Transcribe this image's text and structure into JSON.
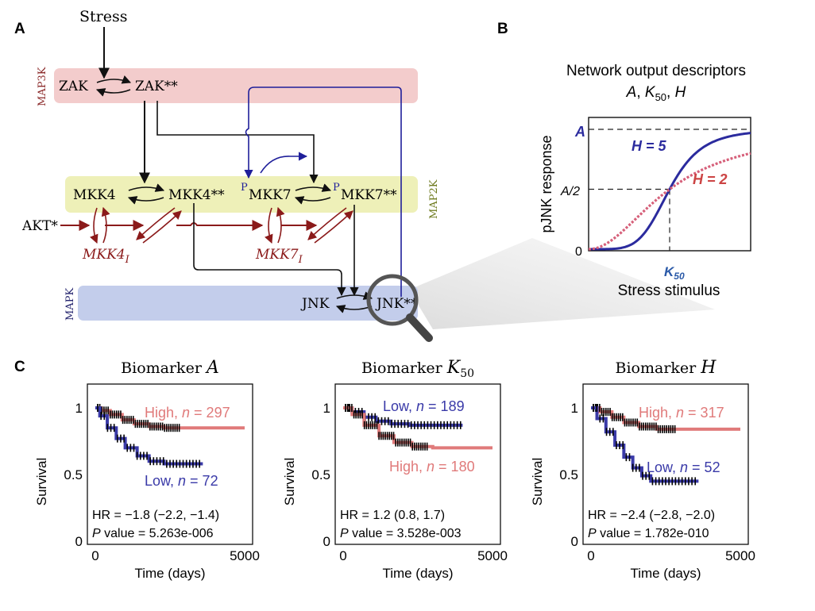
{
  "panels": {
    "a": {
      "label": "A",
      "stress": "Stress",
      "layers": {
        "map3k": "MAP3K",
        "map2k": "MAP2K",
        "mapk": "MAPK"
      },
      "nodes": {
        "zak": "ZAK",
        "zak_pp": "ZAK**",
        "mkk4": "MKK4",
        "mkk4_pp": "MKK4**",
        "p1": "P",
        "mkk7": "MKK7",
        "p2": "P",
        "mkk7_pp": "MKK7**",
        "akt": "AKT*",
        "mkk4_i": "MKK4",
        "mkk4_i_sub": "I",
        "mkk7_i": "MKK7",
        "mkk7_i_sub": "I",
        "jnk": "JNK",
        "jnk_pp": "JNK**"
      },
      "colors": {
        "map3k": "#f3cccc",
        "map2k": "#eef0b8",
        "mapk": "#c3cdeb",
        "inhib": "#8b1a1a",
        "feedback": "#1f1f9a"
      }
    },
    "b": {
      "label": "B",
      "title_line1": "Network output descriptors",
      "title_line2_a": "A",
      "title_line2_sep1": ", ",
      "title_line2_k": "K",
      "title_line2_sub": "50",
      "title_line2_sep2": ", ",
      "title_line2_h": "H",
      "ylabel": "pJNK response",
      "xlabel": "Stress stimulus",
      "ytick_a": "A",
      "ytick_half": "A/2",
      "ytick_zero": "0",
      "xtick_k": "K",
      "xtick_sub": "50",
      "curve_h5": "H = 5",
      "curve_h2": "H = 2",
      "colors": {
        "h5": "#2b2b9e",
        "h2": "#d6607a"
      }
    },
    "c": {
      "label": "C",
      "xlabel": "Time (days)",
      "ylabel": "Survival",
      "xticks": [
        "0",
        "5000"
      ],
      "yticks": [
        "0",
        "0.5",
        "1"
      ],
      "plots": [
        {
          "title": "Biomarker ",
          "title_var": "A",
          "title_sub": "",
          "high_label": "High, ",
          "high_n": "n",
          "high_eq": " = 297",
          "low_label": "Low, ",
          "low_n": "n",
          "low_eq": " = 72",
          "hr": "HR = −1.8 (−2.2, −1.4)",
          "pval_p": "P",
          "pval": " value = 5.263e-006"
        },
        {
          "title": "Biomarker ",
          "title_var": "K",
          "title_sub": "50",
          "high_label": "High, ",
          "high_n": "n",
          "high_eq": " = 180",
          "low_label": "Low, ",
          "low_n": "n",
          "low_eq": " = 189",
          "hr": "HR = 1.2 (0.8, 1.7)",
          "pval_p": "P",
          "pval": " value = 3.528e-003"
        },
        {
          "title": "Biomarker ",
          "title_var": "H",
          "title_sub": "",
          "high_label": "High, ",
          "high_n": "n",
          "high_eq": " = 317",
          "low_label": "Low, ",
          "low_n": "n",
          "low_eq": " = 52",
          "hr": "HR = −2.4 (−2.8, −2.0)",
          "pval_p": "P",
          "pval": " value = 1.782e-010"
        }
      ],
      "colors": {
        "high": "#e07a7a",
        "low": "#3a3aa8",
        "censor": "#000000"
      }
    }
  },
  "chart_data": [
    {
      "type": "line",
      "xlabel": "Stress stimulus",
      "ylabel": "pJNK response",
      "series": [
        {
          "name": "H = 5",
          "hill": 5
        },
        {
          "name": "H = 2",
          "hill": 2
        }
      ]
    },
    {
      "type": "line",
      "title": "Biomarker A",
      "xlabel": "Time (days)",
      "ylabel": "Survival",
      "xlim": [
        0,
        5000
      ],
      "ylim": [
        0,
        1
      ],
      "series": [
        {
          "name": "High, n = 297",
          "x": [
            0,
            200,
            500,
            900,
            1300,
            1800,
            2300,
            5000
          ],
          "y": [
            1.0,
            0.98,
            0.95,
            0.91,
            0.88,
            0.86,
            0.85,
            0.85
          ]
        },
        {
          "name": "Low, n = 72",
          "x": [
            0,
            150,
            400,
            700,
            1000,
            1400,
            1800,
            2300,
            3000,
            3600
          ],
          "y": [
            1.0,
            0.94,
            0.85,
            0.77,
            0.7,
            0.64,
            0.6,
            0.58,
            0.58,
            0.58
          ]
        }
      ]
    },
    {
      "type": "line",
      "title": "Biomarker K50",
      "xlabel": "Time (days)",
      "ylabel": "Survival",
      "xlim": [
        0,
        5000
      ],
      "ylim": [
        0,
        1
      ],
      "series": [
        {
          "name": "Low, n = 189",
          "x": [
            0,
            300,
            700,
            1100,
            1600,
            2200,
            3000,
            4000
          ],
          "y": [
            1.0,
            0.97,
            0.93,
            0.9,
            0.88,
            0.87,
            0.87,
            0.87
          ]
        },
        {
          "name": "High, n = 180",
          "x": [
            0,
            300,
            700,
            1200,
            1700,
            2300,
            3000,
            5000
          ],
          "y": [
            1.0,
            0.95,
            0.87,
            0.79,
            0.74,
            0.71,
            0.7,
            0.7
          ]
        }
      ]
    },
    {
      "type": "line",
      "title": "Biomarker H",
      "xlabel": "Time (days)",
      "ylabel": "Survival",
      "xlim": [
        0,
        5000
      ],
      "ylim": [
        0,
        1
      ],
      "series": [
        {
          "name": "High, n = 317",
          "x": [
            0,
            300,
            700,
            1100,
            1600,
            2200,
            3000,
            5000
          ],
          "y": [
            1.0,
            0.97,
            0.93,
            0.89,
            0.86,
            0.84,
            0.84,
            0.84
          ]
        },
        {
          "name": "Low, n = 52",
          "x": [
            0,
            200,
            500,
            800,
            1100,
            1400,
            1700,
            2000,
            2600,
            3600
          ],
          "y": [
            1.0,
            0.92,
            0.82,
            0.72,
            0.63,
            0.55,
            0.49,
            0.45,
            0.45,
            0.45
          ]
        }
      ]
    }
  ]
}
